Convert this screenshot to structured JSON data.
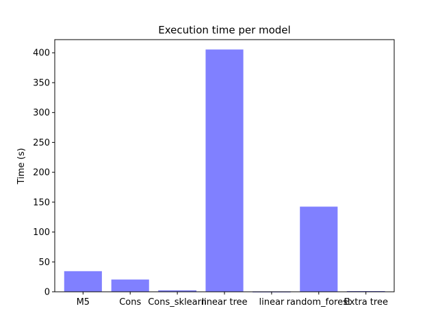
{
  "chart_data": {
    "type": "bar",
    "title": "Execution time per model",
    "xlabel": "",
    "ylabel": "Time (s)",
    "categories": [
      "M5",
      "Cons",
      "Cons_sklearn",
      "linear tree",
      "linear",
      "random_forest",
      "Extra tree"
    ],
    "values": [
      34.5,
      20.5,
      2.0,
      405.5,
      0.3,
      142.5,
      0.8
    ],
    "ylim": [
      0,
      422
    ],
    "yticks": [
      0,
      50,
      100,
      150,
      200,
      250,
      300,
      350,
      400
    ],
    "bar_color": "#8080ff",
    "bar_edge_color": "#6b6be0",
    "grid": false,
    "legend": "none"
  }
}
